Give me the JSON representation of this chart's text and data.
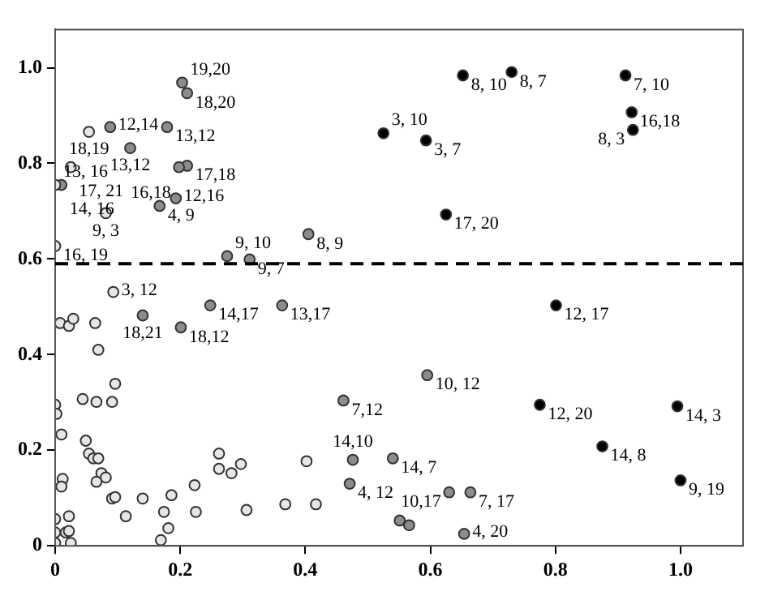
{
  "chart_data": {
    "type": "scatter",
    "xlim": [
      0,
      1.1
    ],
    "ylim": [
      0,
      1.08
    ],
    "xticks": [
      0,
      0.2,
      0.4,
      0.6,
      0.8,
      {
        "value": 1,
        "label": "1.0"
      }
    ],
    "yticks": [
      0,
      0.2,
      0.4,
      0.6,
      0.8,
      {
        "value": 1,
        "label": "1.0"
      }
    ],
    "grid": false,
    "legend": false,
    "marker": "circle",
    "ref_lines": [
      {
        "axis": "y",
        "value": 0.59,
        "line_style": "dashed",
        "color": "#000000"
      }
    ],
    "series": [
      {
        "color": "#e6e6e6",
        "x": [
          0.054,
          0.025,
          0.081,
          0.0,
          0.093,
          0.0,
          0.008,
          0.022,
          0.029,
          0.064,
          0.069,
          0.096,
          0.044,
          0.066,
          0.091,
          0.0,
          0.002,
          0.01,
          0.049,
          0.054,
          0.061,
          0.069,
          0.074,
          0.081,
          0.066,
          0.012,
          0.01,
          0.091,
          0.096,
          0.113,
          0.14,
          0.186,
          0.174,
          0.181,
          0.169,
          0.223,
          0.225,
          0.262,
          0.262,
          0.282,
          0.297,
          0.306,
          0.368,
          0.417,
          0.402,
          0.022,
          0.0,
          0.017,
          0.022,
          0.025,
          0.0,
          0.0
        ],
        "values": [
          0.866,
          0.792,
          0.696,
          0.627,
          0.531,
          0.755,
          0.466,
          0.46,
          0.475,
          0.466,
          0.41,
          0.339,
          0.307,
          0.301,
          0.301,
          0.295,
          0.276,
          0.233,
          0.22,
          0.193,
          0.183,
          0.183,
          0.152,
          0.143,
          0.134,
          0.14,
          0.124,
          0.099,
          0.102,
          0.062,
          0.099,
          0.106,
          0.071,
          0.037,
          0.012,
          0.127,
          0.071,
          0.161,
          0.193,
          0.152,
          0.171,
          0.075,
          0.087,
          0.087,
          0.177,
          0.062,
          0.056,
          0.028,
          0.031,
          0.006,
          0.028,
          0.006
        ]
      },
      {
        "color": "#8c8c8c",
        "x": [
          0.203,
          0.211,
          0.088,
          0.179,
          0.12,
          0.211,
          0.198,
          0.01,
          0.167,
          0.193,
          0.275,
          0.311,
          0.405,
          0.14,
          0.248,
          0.363,
          0.201,
          0.461,
          0.476,
          0.471,
          0.54,
          0.595,
          0.664,
          0.63,
          0.654,
          0.551,
          0.566
        ],
        "values": [
          0.969,
          0.947,
          0.876,
          0.876,
          0.832,
          0.795,
          0.792,
          0.755,
          0.711,
          0.727,
          0.606,
          0.599,
          0.652,
          0.482,
          0.503,
          0.503,
          0.457,
          0.304,
          0.18,
          0.13,
          0.183,
          0.357,
          0.112,
          0.112,
          0.025,
          0.053,
          0.043
        ]
      },
      {
        "color": "#000000",
        "x": [
          0.652,
          0.73,
          0.912,
          0.922,
          0.924,
          0.593,
          0.525,
          0.625,
          0.801,
          0.775,
          0.995,
          0.875,
          1.0
        ],
        "values": [
          0.984,
          0.991,
          0.984,
          0.907,
          0.87,
          0.848,
          0.863,
          0.693,
          0.503,
          0.295,
          0.292,
          0.208,
          0.137
        ]
      }
    ],
    "annotations": [
      {
        "text": "19,20",
        "x": 0.203,
        "y": 0.969
      },
      {
        "text": "18,20",
        "x": 0.211,
        "y": 0.947
      },
      {
        "text": "12,14",
        "x": 0.088,
        "y": 0.876
      },
      {
        "text": "18,19",
        "x": 0.054,
        "y": 0.866
      },
      {
        "text": "13,12",
        "x": 0.179,
        "y": 0.876
      },
      {
        "text": "13,12",
        "x": 0.12,
        "y": 0.832
      },
      {
        "text": "17, 21",
        "x": 0.025,
        "y": 0.792
      },
      {
        "text": "17,18",
        "x": 0.211,
        "y": 0.795
      },
      {
        "text": "16,18",
        "x": 0.198,
        "y": 0.792
      },
      {
        "text": "14, 16",
        "x": 0.01,
        "y": 0.755
      },
      {
        "text": "13, 16",
        "x": 0.0,
        "y": 0.755
      },
      {
        "text": "9, 3",
        "x": 0.081,
        "y": 0.696
      },
      {
        "text": "4, 9",
        "x": 0.167,
        "y": 0.711
      },
      {
        "text": "12,16",
        "x": 0.193,
        "y": 0.727
      },
      {
        "text": "16, 19",
        "x": 0.0,
        "y": 0.627
      },
      {
        "text": "9, 10",
        "x": 0.275,
        "y": 0.606
      },
      {
        "text": "9, 7",
        "x": 0.311,
        "y": 0.599
      },
      {
        "text": "8, 9",
        "x": 0.405,
        "y": 0.652
      },
      {
        "text": "3, 12",
        "x": 0.093,
        "y": 0.531
      },
      {
        "text": "18,21",
        "x": 0.14,
        "y": 0.482
      },
      {
        "text": "14,17",
        "x": 0.248,
        "y": 0.503
      },
      {
        "text": "13,17",
        "x": 0.363,
        "y": 0.503
      },
      {
        "text": "18,12",
        "x": 0.201,
        "y": 0.457
      },
      {
        "text": "7,12",
        "x": 0.461,
        "y": 0.304
      },
      {
        "text": "14,10",
        "x": 0.476,
        "y": 0.18
      },
      {
        "text": "4, 12",
        "x": 0.471,
        "y": 0.13
      },
      {
        "text": "14, 7",
        "x": 0.54,
        "y": 0.183
      },
      {
        "text": "10, 12",
        "x": 0.595,
        "y": 0.357
      },
      {
        "text": "7, 17",
        "x": 0.664,
        "y": 0.112
      },
      {
        "text": "10,17",
        "x": 0.63,
        "y": 0.112
      },
      {
        "text": "4, 20",
        "x": 0.654,
        "y": 0.025
      },
      {
        "text": "8, 10",
        "x": 0.652,
        "y": 0.984
      },
      {
        "text": "8, 7",
        "x": 0.73,
        "y": 0.991
      },
      {
        "text": "7, 10",
        "x": 0.912,
        "y": 0.984
      },
      {
        "text": "16,18",
        "x": 0.922,
        "y": 0.907
      },
      {
        "text": "8, 3",
        "x": 0.924,
        "y": 0.87
      },
      {
        "text": "3, 7",
        "x": 0.593,
        "y": 0.848
      },
      {
        "text": "3, 10",
        "x": 0.525,
        "y": 0.863
      },
      {
        "text": "17, 20",
        "x": 0.625,
        "y": 0.693
      },
      {
        "text": "12, 17",
        "x": 0.801,
        "y": 0.503
      },
      {
        "text": "12, 20",
        "x": 0.775,
        "y": 0.295
      },
      {
        "text": "14, 3",
        "x": 0.995,
        "y": 0.292
      },
      {
        "text": "14, 8",
        "x": 0.875,
        "y": 0.208
      },
      {
        "text": "9, 19",
        "x": 1.0,
        "y": 0.137
      }
    ]
  }
}
